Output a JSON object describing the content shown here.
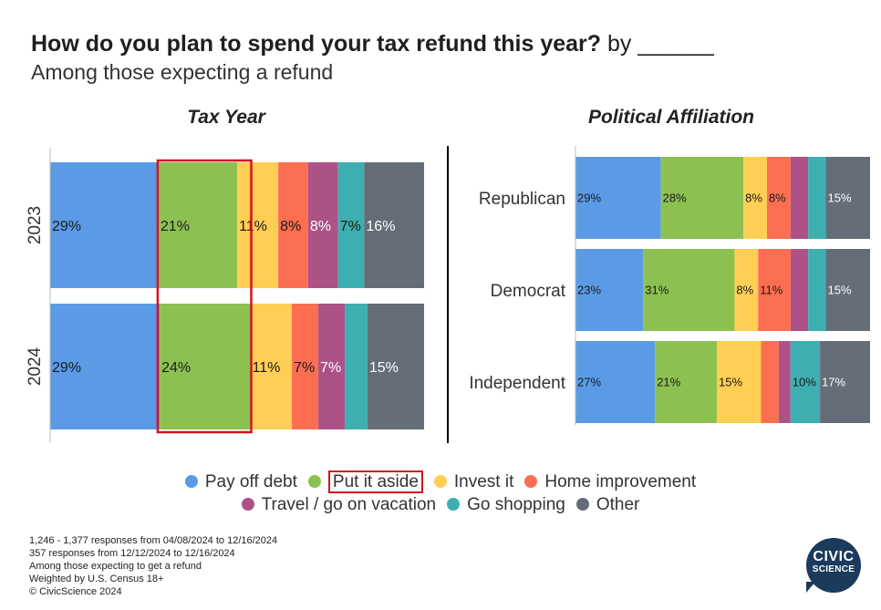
{
  "title": {
    "main": "How do you plan to spend your tax refund this year?",
    "suffix": "by ______"
  },
  "subtitle": "Among those expecting a refund",
  "categories": [
    "Pay off debt",
    "Put it aside",
    "Invest it",
    "Home improvement",
    "Travel / go on vacation",
    "Go shopping",
    "Other"
  ],
  "colors": [
    "#5b9be6",
    "#8cc152",
    "#ffce55",
    "#fc6e51",
    "#ac5287",
    "#3eafb1",
    "#656d78"
  ],
  "label_colors": [
    "#1a1a1a",
    "#1a1a1a",
    "#1a1a1a",
    "#1a1a1a",
    "#ffffff",
    "#1a1a1a",
    "#ffffff"
  ],
  "highlight_color": "#d6121f",
  "highlighted_category": "Put it aside",
  "chart_data": [
    {
      "type": "bar",
      "orientation": "horizontal",
      "stacked": true,
      "title": "Tax Year",
      "categories": [
        "2023",
        "2024"
      ],
      "series": [
        {
          "name": "Pay off debt",
          "values": [
            29,
            29
          ],
          "labels": [
            "29%",
            "29%"
          ]
        },
        {
          "name": "Put it aside",
          "values": [
            21,
            24
          ],
          "labels": [
            "21%",
            "24%"
          ]
        },
        {
          "name": "Invest it",
          "values": [
            11,
            11
          ],
          "labels": [
            "11%",
            "11%"
          ]
        },
        {
          "name": "Home improvement",
          "values": [
            8,
            7
          ],
          "labels": [
            "8%",
            "7%"
          ]
        },
        {
          "name": "Travel / go on vacation",
          "values": [
            8,
            7
          ],
          "labels": [
            "8%",
            "7%"
          ]
        },
        {
          "name": "Go shopping",
          "values": [
            7,
            6
          ],
          "labels": [
            "7%",
            ""
          ]
        },
        {
          "name": "Other",
          "values": [
            16,
            15
          ],
          "labels": [
            "16%",
            "15%"
          ]
        }
      ]
    },
    {
      "type": "bar",
      "orientation": "horizontal",
      "stacked": true,
      "title": "Political Affiliation",
      "categories": [
        "Republican",
        "Democrat",
        "Independent"
      ],
      "series": [
        {
          "name": "Pay off debt",
          "values": [
            29,
            23,
            27
          ],
          "labels": [
            "29%",
            "23%",
            "27%"
          ]
        },
        {
          "name": "Put it aside",
          "values": [
            28,
            31,
            21
          ],
          "labels": [
            "28%",
            "31%",
            "21%"
          ]
        },
        {
          "name": "Invest it",
          "values": [
            8,
            8,
            15
          ],
          "labels": [
            "8%",
            "8%",
            "15%"
          ]
        },
        {
          "name": "Home improvement",
          "values": [
            8,
            11,
            6
          ],
          "labels": [
            "8%",
            "11%",
            ""
          ]
        },
        {
          "name": "Travel / go on vacation",
          "values": [
            6,
            6,
            4
          ],
          "labels": [
            "",
            "",
            ""
          ]
        },
        {
          "name": "Go shopping",
          "values": [
            6,
            6,
            10
          ],
          "labels": [
            "",
            "",
            "10%"
          ]
        },
        {
          "name": "Other",
          "values": [
            15,
            15,
            17
          ],
          "labels": [
            "15%",
            "15%",
            "17%"
          ]
        }
      ]
    }
  ],
  "notes": [
    "1,246 - 1,377 responses from 04/08/2024 to 12/16/2024",
    "357 responses from 12/12/2024 to 12/16/2024",
    "Among those expecting to get a refund",
    "Weighted by U.S. Census 18+",
    "© CivicScience 2024"
  ],
  "logo": {
    "line1": "CIVIC",
    "line2": "SCIENCE",
    "color": "#1b3a5c"
  }
}
